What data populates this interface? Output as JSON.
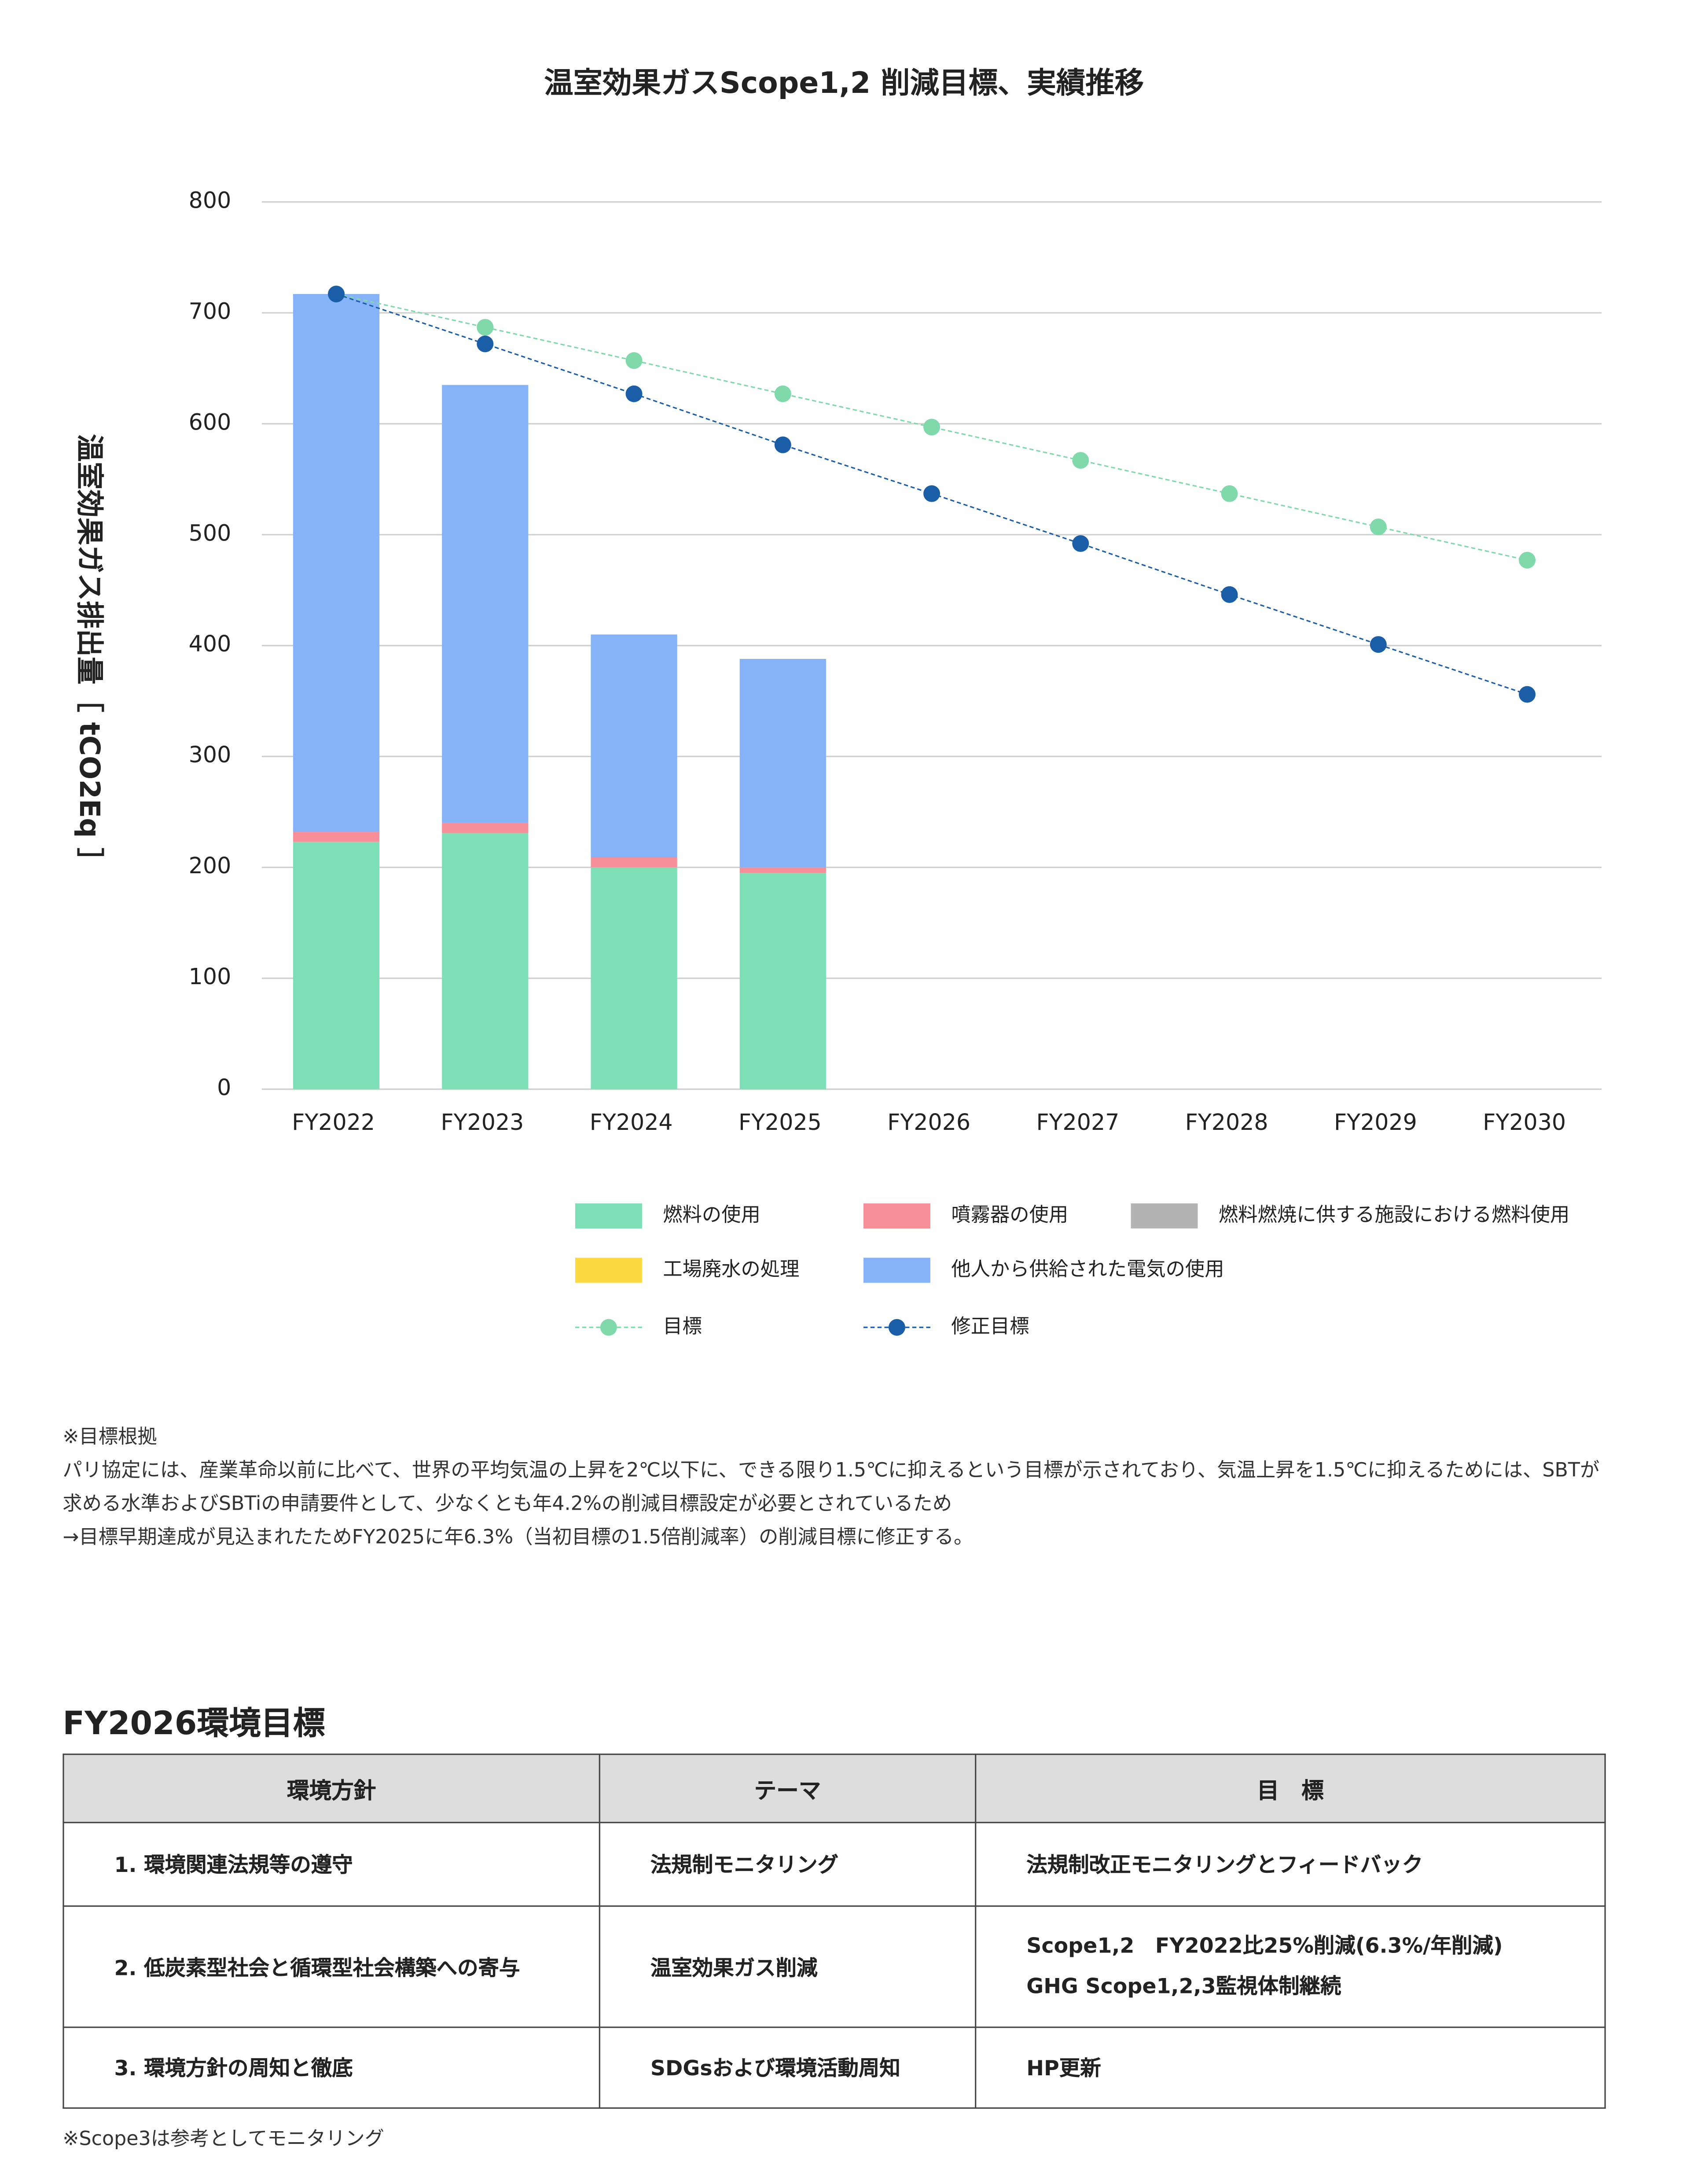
{
  "chart_data": {
    "type": "bar",
    "stacked": true,
    "title": "温室効果ガスScope1,2 削減目標、実績推移",
    "y_label": "温室効果ガス排出量［ tCO2Eq ］",
    "categories": [
      "FY2022",
      "FY2023",
      "FY2024",
      "FY2025",
      "FY2026",
      "FY2027",
      "FY2028",
      "FY2029",
      "FY2030"
    ],
    "series": [
      {
        "name": "燃料の使用",
        "color": "#7ddfb5",
        "values": [
          223,
          231,
          200,
          195,
          null,
          null,
          null,
          null,
          null
        ]
      },
      {
        "name": "噴霧器の使用",
        "color": "#f78f98",
        "values": [
          9,
          9,
          9,
          5,
          null,
          null,
          null,
          null,
          null
        ]
      },
      {
        "name": "燃料燃焼に供する施設における燃料使用",
        "color": "#b3b3b3",
        "values": [
          0,
          0,
          0,
          0,
          null,
          null,
          null,
          null,
          null
        ]
      },
      {
        "name": "工場廃水の処理",
        "color": "#fcd93f",
        "values": [
          0,
          0,
          0,
          0,
          null,
          null,
          null,
          null,
          null
        ]
      },
      {
        "name": "他人から供給された電気の使用",
        "color": "#86b3f7",
        "values": [
          485,
          395,
          201,
          188,
          null,
          null,
          null,
          null,
          null
        ]
      },
      {
        "name": "目標",
        "type": "line",
        "dashed": true,
        "color": "#7fd9aa",
        "values": [
          717,
          687,
          657,
          627,
          597,
          567,
          537,
          507,
          477
        ]
      },
      {
        "name": "修正目標",
        "type": "line",
        "dashed": true,
        "color": "#1a5ea8",
        "values": [
          717,
          672,
          627,
          581,
          537,
          492,
          446,
          401,
          356
        ]
      }
    ],
    "ylim": [
      0,
      800
    ],
    "yticks": [
      0,
      100,
      200,
      300,
      400,
      500,
      600,
      700,
      800
    ],
    "grid": true,
    "legend": "bottom"
  },
  "notes": [
    "※目標根拠",
    "パリ協定には、産業革命以前に比べて、世界の平均気温の上昇を2℃以下に、できる限り1.5℃に抑えるという目標が示されており、気温上昇を1.5℃に抑えるためには、SBTが求める水準およびSBTiの申請要件として、少なくとも年4.2%の削減目標設定が必要とされているため",
    "→目標早期達成が見込まれたためFY2025に年6.3%（当初目標の1.5倍削減率）の削減目標に修正する。"
  ],
  "table": {
    "title": "FY2026環境目標",
    "header": [
      "環境方針",
      "テーマ",
      "目　標"
    ],
    "rows": [
      [
        "1. 環境関連法規等の遵守",
        "法規制モニタリング",
        [
          "法規制改正モニタリングとフィードバック"
        ]
      ],
      [
        "2. 低炭素型社会と循環型社会構築への寄与",
        "温室効果ガス削減",
        [
          "Scope1,2　FY2022比25%削減(6.3%/年削減)",
          "GHG Scope1,2,3監視体制継続"
        ]
      ],
      [
        "3. 環境方針の周知と徹底",
        "SDGsおよび環境活動周知",
        [
          "HP更新"
        ]
      ]
    ],
    "footnote": "※Scope3は参考としてモニタリング"
  }
}
